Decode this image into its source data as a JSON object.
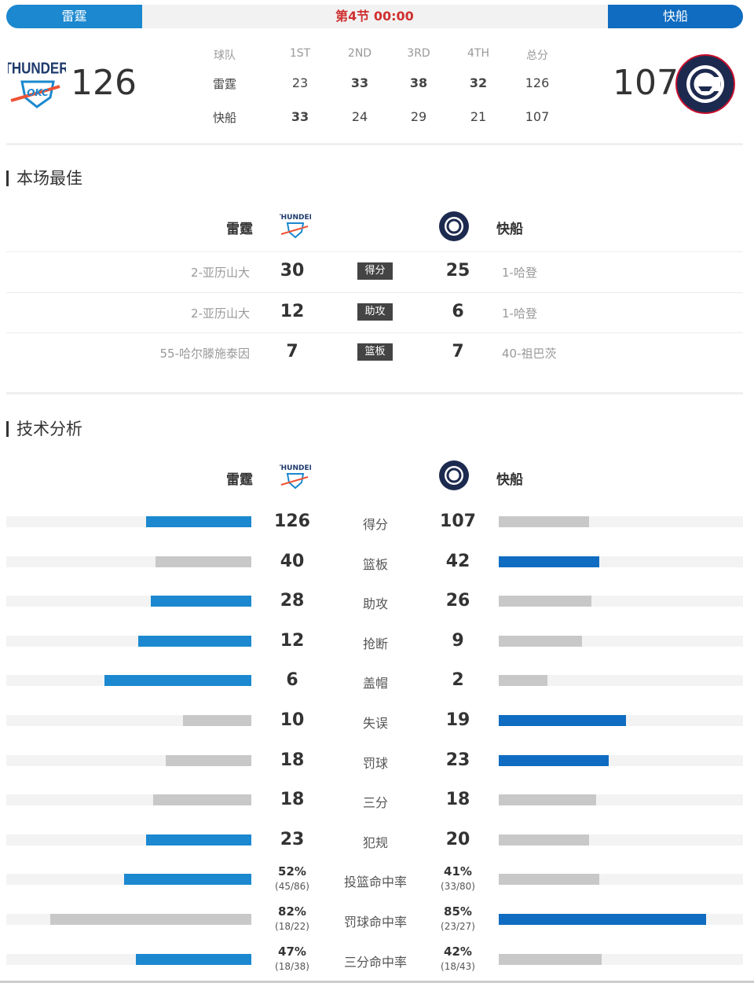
{
  "header": {
    "home": "雷霆",
    "away": "快船",
    "period": "第4节 00:00",
    "home_score": "126",
    "away_score": "107"
  },
  "quarters": {
    "headers": [
      "球队",
      "1ST",
      "2ND",
      "3RD",
      "4TH",
      "总分"
    ],
    "rows": [
      {
        "team": "雷霆",
        "scores": [
          "23",
          "33",
          "38",
          "32",
          "126"
        ],
        "bold": [
          false,
          true,
          true,
          true,
          false
        ]
      },
      {
        "team": "快船",
        "scores": [
          "33",
          "24",
          "29",
          "21",
          "107"
        ],
        "bold": [
          true,
          false,
          false,
          false,
          false
        ]
      }
    ]
  },
  "best": {
    "title": "本场最佳",
    "home": "雷霆",
    "away": "快船",
    "rows": [
      {
        "home_player": "2-亚历山大",
        "home_val": "30",
        "stat": "得分",
        "away_val": "25",
        "away_player": "1-哈登"
      },
      {
        "home_player": "2-亚历山大",
        "home_val": "12",
        "stat": "助攻",
        "away_val": "6",
        "away_player": "1-哈登"
      },
      {
        "home_player": "55-哈尔滕施泰因",
        "home_val": "7",
        "stat": "篮板",
        "away_val": "7",
        "away_player": "40-祖巴茨"
      }
    ]
  },
  "analysis": {
    "title": "技术分析",
    "home": "雷霆",
    "away": "快船",
    "colors": {
      "home_lead": "#1b88cf",
      "away_lead": "#0f6cc0",
      "trail": "#c8c8c8",
      "track": "#f3f3f3"
    },
    "rows": [
      {
        "stat": "得分",
        "home": "126",
        "away": "107",
        "home_fill": 0.43,
        "away_fill": 0.37
      },
      {
        "stat": "篮板",
        "home": "40",
        "away": "42",
        "home_fill": 0.39,
        "away_fill": 0.41
      },
      {
        "stat": "助攻",
        "home": "28",
        "away": "26",
        "home_fill": 0.41,
        "away_fill": 0.38
      },
      {
        "stat": "抢断",
        "home": "12",
        "away": "9",
        "home_fill": 0.46,
        "away_fill": 0.34
      },
      {
        "stat": "盖帽",
        "home": "6",
        "away": "2",
        "home_fill": 0.6,
        "away_fill": 0.2
      },
      {
        "stat": "失误",
        "home": "10",
        "away": "19",
        "home_fill": 0.28,
        "away_fill": 0.52
      },
      {
        "stat": "罚球",
        "home": "18",
        "away": "23",
        "home_fill": 0.35,
        "away_fill": 0.45
      },
      {
        "stat": "三分",
        "home": "18",
        "away": "18",
        "home_fill": 0.4,
        "away_fill": 0.4
      },
      {
        "stat": "犯规",
        "home": "23",
        "away": "20",
        "home_fill": 0.43,
        "away_fill": 0.37
      },
      {
        "stat": "投篮命中率",
        "home": "52%",
        "home_frac": "(45/86)",
        "away": "41%",
        "away_frac": "(33/80)",
        "home_fill": 0.52,
        "away_fill": 0.41
      },
      {
        "stat": "罚球命中率",
        "home": "82%",
        "home_frac": "(18/22)",
        "away": "85%",
        "away_frac": "(23/27)",
        "home_fill": 0.82,
        "away_fill": 0.85
      },
      {
        "stat": "三分命中率",
        "home": "47%",
        "home_frac": "(18/38)",
        "away": "42%",
        "away_frac": "(18/43)",
        "home_fill": 0.47,
        "away_fill": 0.42
      }
    ]
  }
}
